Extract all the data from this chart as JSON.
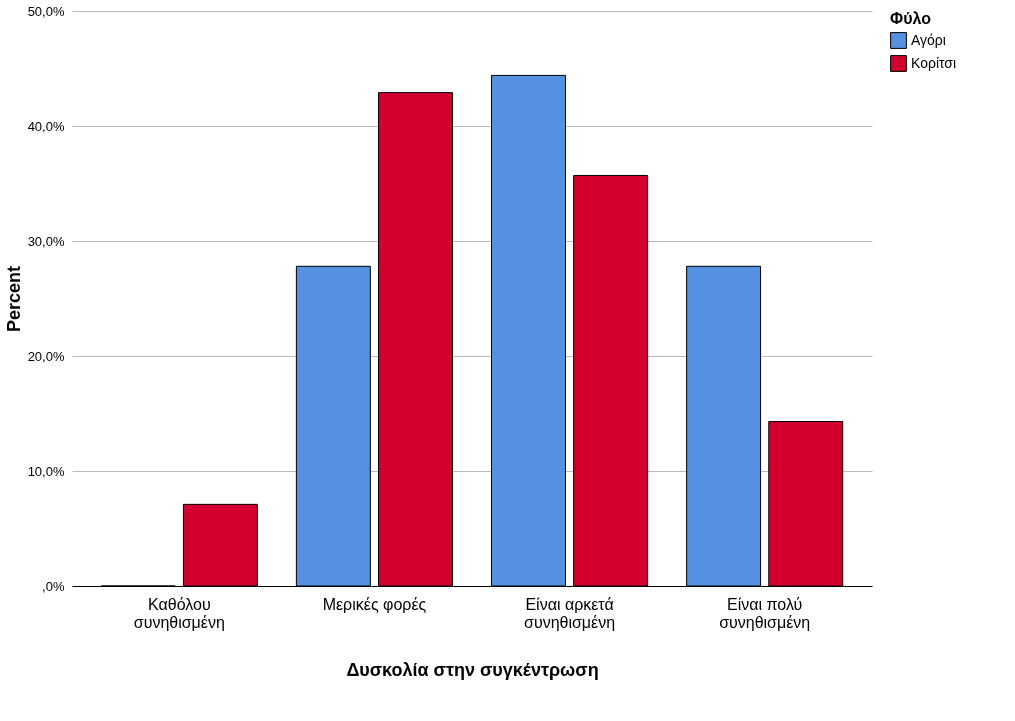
{
  "chart_data": {
    "type": "bar",
    "xlabel": "Δυσκολία στην συγκέντρωση",
    "ylabel": "Percent",
    "legend_title": "Φύλο",
    "categories": [
      "Καθόλου\nσυνηθισμένη",
      "Μερικές φορές",
      "Είναι αρκετά\nσυνηθισμένη",
      "Είναι πολύ\nσυνηθισμένη"
    ],
    "series": [
      {
        "name": "Αγόρι",
        "color": "#5591e1",
        "values": [
          0,
          27.8,
          44.4,
          27.8
        ]
      },
      {
        "name": "Κορίτσι",
        "color": "#d3002f",
        "values": [
          7.1,
          42.9,
          35.7,
          14.3
        ]
      }
    ],
    "ylim": [
      0,
      50
    ],
    "yticks": [
      {
        "value": 0,
        "label": ",0%"
      },
      {
        "value": 10,
        "label": "10,0%"
      },
      {
        "value": 20,
        "label": "20,0%"
      },
      {
        "value": 30,
        "label": "30,0%"
      },
      {
        "value": 40,
        "label": "40,0%"
      },
      {
        "value": 50,
        "label": "50,0%"
      }
    ],
    "grid": "y",
    "legend": "top right"
  }
}
